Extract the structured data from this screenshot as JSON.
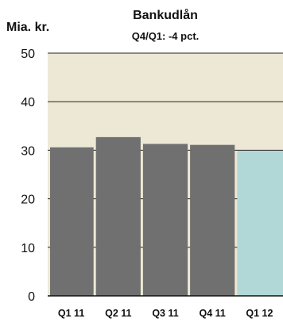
{
  "chart_data": {
    "type": "bar",
    "title": "Bankudlån",
    "subtitle": "Q4/Q1: -4 pct.",
    "ylabel": "Mia. kr.",
    "xlabel": "",
    "categories": [
      "Q1 11",
      "Q2 11",
      "Q3 11",
      "Q4 11",
      "Q1 12"
    ],
    "values": [
      30.6,
      32.7,
      31.3,
      31.1,
      29.9
    ],
    "bar_colors": [
      "#707070",
      "#707070",
      "#707070",
      "#707070",
      "#b2d7d7"
    ],
    "ylim": [
      0,
      50
    ],
    "yticks": [
      "0",
      "10",
      "20",
      "30",
      "40",
      "50"
    ],
    "grid": true,
    "colors": {
      "plot_background": "#ece8d5",
      "gridline": "#222222",
      "axis": "#111111"
    }
  }
}
